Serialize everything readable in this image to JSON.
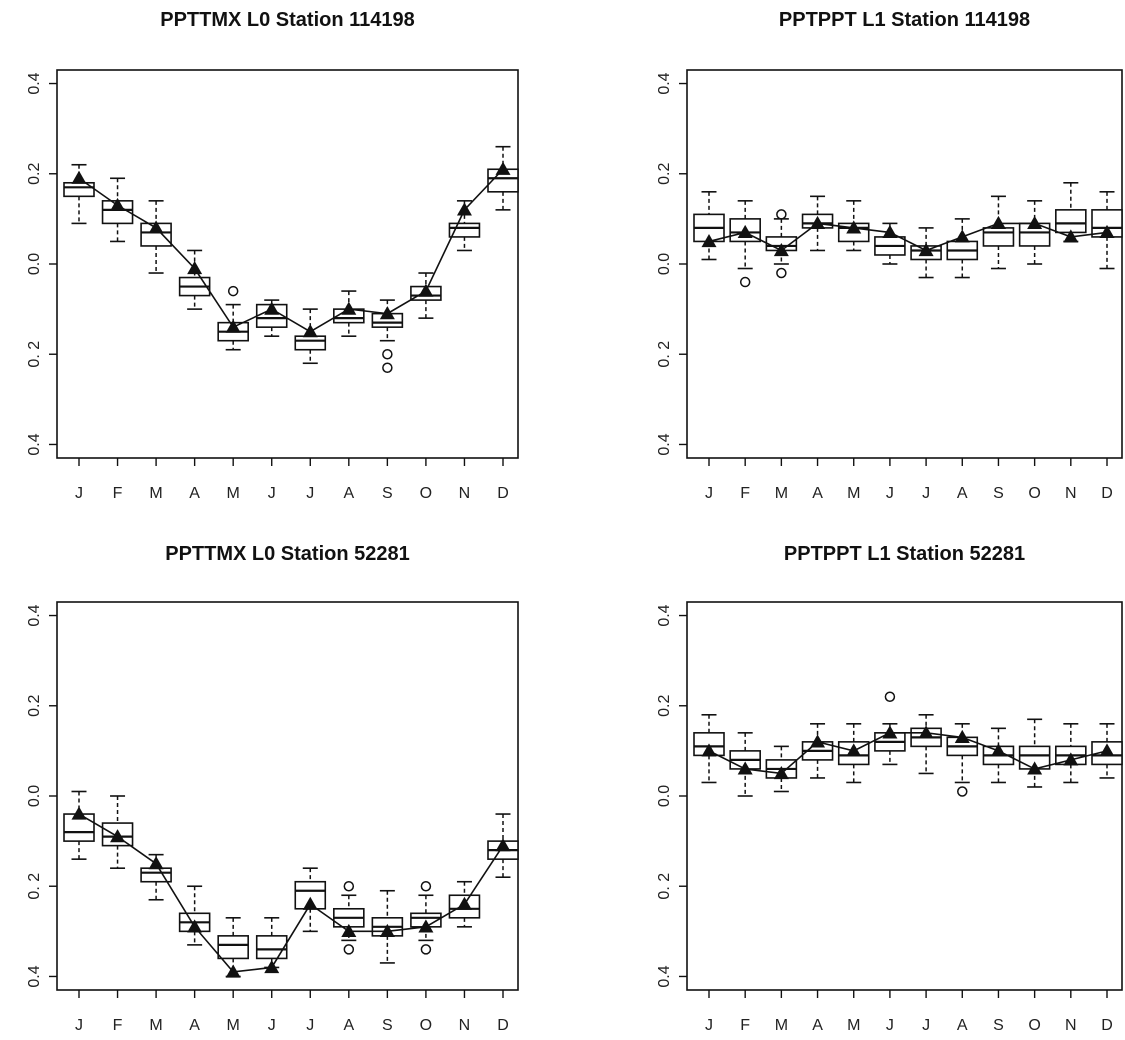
{
  "chart_data": [
    {
      "type": "box",
      "title": "PPTTMX L0 Station 114198",
      "categories": [
        "J",
        "F",
        "M",
        "A",
        "M",
        "J",
        "J",
        "A",
        "S",
        "O",
        "N",
        "D"
      ],
      "yticks": [
        -0.4,
        -0.2,
        0.0,
        0.2,
        0.4
      ],
      "ytick_labels": [
        "0.4",
        "0. 2",
        "0.0",
        "0.2",
        "0.4"
      ],
      "ylim": [
        -0.43,
        0.43
      ],
      "boxes": [
        {
          "min": 0.09,
          "q1": 0.15,
          "median": 0.17,
          "q3": 0.18,
          "max": 0.22,
          "outliers": []
        },
        {
          "min": 0.05,
          "q1": 0.09,
          "median": 0.12,
          "q3": 0.14,
          "max": 0.19,
          "outliers": []
        },
        {
          "min": -0.02,
          "q1": 0.04,
          "median": 0.07,
          "q3": 0.09,
          "max": 0.14,
          "outliers": []
        },
        {
          "min": -0.1,
          "q1": -0.07,
          "median": -0.05,
          "q3": -0.03,
          "max": 0.03,
          "outliers": []
        },
        {
          "min": -0.19,
          "q1": -0.17,
          "median": -0.15,
          "q3": -0.13,
          "max": -0.09,
          "outliers": [
            -0.06
          ]
        },
        {
          "min": -0.16,
          "q1": -0.14,
          "median": -0.12,
          "q3": -0.09,
          "max": -0.08,
          "outliers": []
        },
        {
          "min": -0.22,
          "q1": -0.19,
          "median": -0.17,
          "q3": -0.16,
          "max": -0.1,
          "outliers": []
        },
        {
          "min": -0.16,
          "q1": -0.13,
          "median": -0.12,
          "q3": -0.1,
          "max": -0.06,
          "outliers": []
        },
        {
          "min": -0.17,
          "q1": -0.14,
          "median": -0.13,
          "q3": -0.11,
          "max": -0.08,
          "outliers": [
            -0.2,
            -0.23
          ]
        },
        {
          "min": -0.12,
          "q1": -0.08,
          "median": -0.07,
          "q3": -0.05,
          "max": -0.02,
          "outliers": []
        },
        {
          "min": 0.03,
          "q1": 0.06,
          "median": 0.08,
          "q3": 0.09,
          "max": 0.14,
          "outliers": []
        },
        {
          "min": 0.12,
          "q1": 0.16,
          "median": 0.19,
          "q3": 0.21,
          "max": 0.26,
          "outliers": []
        }
      ],
      "means": [
        0.19,
        0.13,
        0.08,
        -0.01,
        -0.14,
        -0.1,
        -0.15,
        -0.1,
        -0.11,
        -0.06,
        0.12,
        0.21
      ]
    },
    {
      "type": "box",
      "title": "PPTPPT L1 Station 114198",
      "categories": [
        "J",
        "F",
        "M",
        "A",
        "M",
        "J",
        "J",
        "A",
        "S",
        "O",
        "N",
        "D"
      ],
      "yticks": [
        -0.4,
        -0.2,
        0.0,
        0.2,
        0.4
      ],
      "ytick_labels": [
        "0.4",
        "0. 2",
        "0.0",
        "0.2",
        "0.4"
      ],
      "ylim": [
        -0.43,
        0.43
      ],
      "boxes": [
        {
          "min": 0.01,
          "q1": 0.05,
          "median": 0.08,
          "q3": 0.11,
          "max": 0.16,
          "outliers": []
        },
        {
          "min": -0.01,
          "q1": 0.05,
          "median": 0.07,
          "q3": 0.1,
          "max": 0.14,
          "outliers": [
            -0.04
          ]
        },
        {
          "min": 0.0,
          "q1": 0.03,
          "median": 0.04,
          "q3": 0.06,
          "max": 0.1,
          "outliers": [
            0.11,
            -0.02
          ]
        },
        {
          "min": 0.03,
          "q1": 0.08,
          "median": 0.09,
          "q3": 0.11,
          "max": 0.15,
          "outliers": []
        },
        {
          "min": 0.03,
          "q1": 0.05,
          "median": 0.08,
          "q3": 0.09,
          "max": 0.14,
          "outliers": []
        },
        {
          "min": 0.0,
          "q1": 0.02,
          "median": 0.04,
          "q3": 0.06,
          "max": 0.09,
          "outliers": []
        },
        {
          "min": -0.03,
          "q1": 0.01,
          "median": 0.03,
          "q3": 0.04,
          "max": 0.08,
          "outliers": []
        },
        {
          "min": -0.03,
          "q1": 0.01,
          "median": 0.03,
          "q3": 0.05,
          "max": 0.1,
          "outliers": []
        },
        {
          "min": -0.01,
          "q1": 0.04,
          "median": 0.07,
          "q3": 0.08,
          "max": 0.15,
          "outliers": []
        },
        {
          "min": 0.0,
          "q1": 0.04,
          "median": 0.07,
          "q3": 0.09,
          "max": 0.14,
          "outliers": []
        },
        {
          "min": 0.05,
          "q1": 0.07,
          "median": 0.09,
          "q3": 0.12,
          "max": 0.18,
          "outliers": []
        },
        {
          "min": -0.01,
          "q1": 0.06,
          "median": 0.08,
          "q3": 0.12,
          "max": 0.16,
          "outliers": []
        }
      ],
      "means": [
        0.05,
        0.07,
        0.03,
        0.09,
        0.08,
        0.07,
        0.03,
        0.06,
        0.09,
        0.09,
        0.06,
        0.07
      ]
    },
    {
      "type": "box",
      "title": "PPTTMX  L0 Station 52281",
      "categories": [
        "J",
        "F",
        "M",
        "A",
        "M",
        "J",
        "J",
        "A",
        "S",
        "O",
        "N",
        "D"
      ],
      "yticks": [
        -0.4,
        -0.2,
        0.0,
        0.2,
        0.4
      ],
      "ytick_labels": [
        "0.4",
        "0. 2",
        "0.0",
        "0.2",
        "0.4"
      ],
      "ylim": [
        -0.43,
        0.43
      ],
      "boxes": [
        {
          "min": -0.14,
          "q1": -0.1,
          "median": -0.08,
          "q3": -0.04,
          "max": 0.01,
          "outliers": []
        },
        {
          "min": -0.16,
          "q1": -0.11,
          "median": -0.09,
          "q3": -0.06,
          "max": 0.0,
          "outliers": []
        },
        {
          "min": -0.23,
          "q1": -0.19,
          "median": -0.17,
          "q3": -0.16,
          "max": -0.13,
          "outliers": []
        },
        {
          "min": -0.33,
          "q1": -0.3,
          "median": -0.28,
          "q3": -0.26,
          "max": -0.2,
          "outliers": []
        },
        {
          "min": -0.4,
          "q1": -0.36,
          "median": -0.33,
          "q3": -0.31,
          "max": -0.27,
          "outliers": []
        },
        {
          "min": -0.38,
          "q1": -0.36,
          "median": -0.34,
          "q3": -0.31,
          "max": -0.27,
          "outliers": []
        },
        {
          "min": -0.3,
          "q1": -0.25,
          "median": -0.21,
          "q3": -0.19,
          "max": -0.16,
          "outliers": []
        },
        {
          "min": -0.32,
          "q1": -0.29,
          "median": -0.27,
          "q3": -0.25,
          "max": -0.22,
          "outliers": [
            -0.2,
            -0.34
          ]
        },
        {
          "min": -0.37,
          "q1": -0.31,
          "median": -0.29,
          "q3": -0.27,
          "max": -0.21,
          "outliers": []
        },
        {
          "min": -0.32,
          "q1": -0.29,
          "median": -0.27,
          "q3": -0.26,
          "max": -0.22,
          "outliers": [
            -0.2,
            -0.34
          ]
        },
        {
          "min": -0.29,
          "q1": -0.27,
          "median": -0.25,
          "q3": -0.22,
          "max": -0.19,
          "outliers": []
        },
        {
          "min": -0.18,
          "q1": -0.14,
          "median": -0.12,
          "q3": -0.1,
          "max": -0.04,
          "outliers": []
        }
      ],
      "means": [
        -0.04,
        -0.09,
        -0.15,
        -0.29,
        -0.39,
        -0.38,
        -0.24,
        -0.3,
        -0.3,
        -0.29,
        -0.24,
        -0.11
      ]
    },
    {
      "type": "box",
      "title": "PPTPPT L1 Station 52281",
      "categories": [
        "J",
        "F",
        "M",
        "A",
        "M",
        "J",
        "J",
        "A",
        "S",
        "O",
        "N",
        "D"
      ],
      "yticks": [
        -0.4,
        -0.2,
        0.0,
        0.2,
        0.4
      ],
      "ytick_labels": [
        "0.4",
        "0. 2",
        "0.0",
        "0.2",
        "0.4"
      ],
      "ylim": [
        -0.43,
        0.43
      ],
      "boxes": [
        {
          "min": 0.03,
          "q1": 0.09,
          "median": 0.11,
          "q3": 0.14,
          "max": 0.18,
          "outliers": []
        },
        {
          "min": 0.0,
          "q1": 0.06,
          "median": 0.08,
          "q3": 0.1,
          "max": 0.14,
          "outliers": []
        },
        {
          "min": 0.01,
          "q1": 0.04,
          "median": 0.06,
          "q3": 0.08,
          "max": 0.11,
          "outliers": []
        },
        {
          "min": 0.04,
          "q1": 0.08,
          "median": 0.1,
          "q3": 0.12,
          "max": 0.16,
          "outliers": []
        },
        {
          "min": 0.03,
          "q1": 0.07,
          "median": 0.09,
          "q3": 0.12,
          "max": 0.16,
          "outliers": []
        },
        {
          "min": 0.07,
          "q1": 0.1,
          "median": 0.12,
          "q3": 0.14,
          "max": 0.16,
          "outliers": [
            0.22
          ]
        },
        {
          "min": 0.05,
          "q1": 0.11,
          "median": 0.13,
          "q3": 0.15,
          "max": 0.18,
          "outliers": []
        },
        {
          "min": 0.03,
          "q1": 0.09,
          "median": 0.11,
          "q3": 0.13,
          "max": 0.16,
          "outliers": [
            0.01
          ]
        },
        {
          "min": 0.03,
          "q1": 0.07,
          "median": 0.09,
          "q3": 0.11,
          "max": 0.15,
          "outliers": []
        },
        {
          "min": 0.02,
          "q1": 0.06,
          "median": 0.09,
          "q3": 0.11,
          "max": 0.17,
          "outliers": []
        },
        {
          "min": 0.03,
          "q1": 0.07,
          "median": 0.09,
          "q3": 0.11,
          "max": 0.16,
          "outliers": []
        },
        {
          "min": 0.04,
          "q1": 0.07,
          "median": 0.09,
          "q3": 0.12,
          "max": 0.16,
          "outliers": []
        }
      ],
      "means": [
        0.1,
        0.06,
        0.05,
        0.12,
        0.1,
        0.14,
        0.14,
        0.13,
        0.1,
        0.06,
        0.08,
        0.1
      ]
    }
  ]
}
